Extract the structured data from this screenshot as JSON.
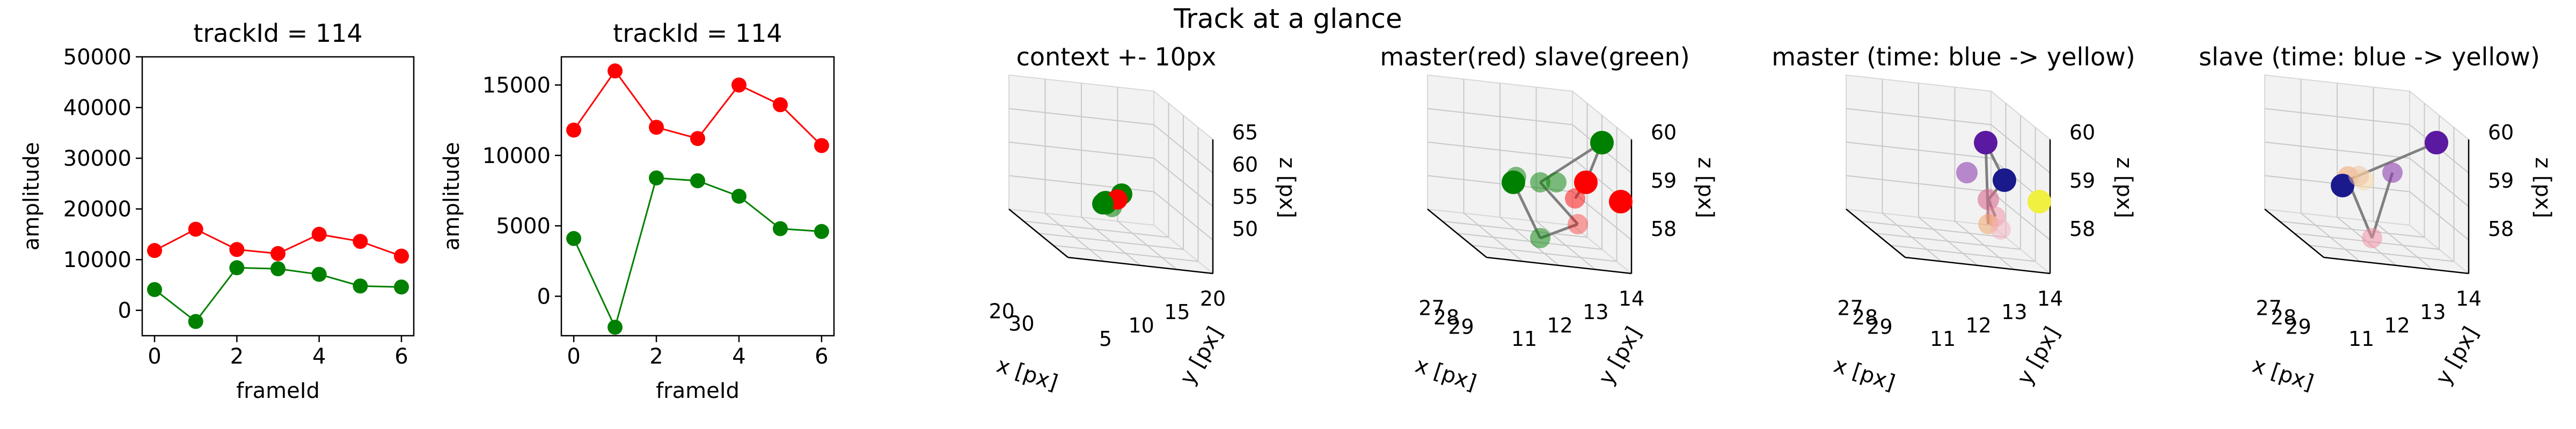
{
  "figure": {
    "suptitle": "Track at a glance"
  },
  "chart_data": [
    {
      "type": "line",
      "title": "trackId = 114",
      "xlabel": "frameId",
      "ylabel": "amplitude",
      "xlim": [
        -0.3,
        6.3
      ],
      "ylim": [
        -5000,
        50000
      ],
      "xticks": [
        0,
        2,
        4,
        6
      ],
      "yticks": [
        0,
        10000,
        20000,
        30000,
        40000,
        50000
      ],
      "x": [
        0,
        1,
        2,
        3,
        4,
        5,
        6
      ],
      "series": [
        {
          "color": "#ff0000",
          "values": [
            11800,
            16000,
            12000,
            11200,
            15000,
            13600,
            10700
          ]
        },
        {
          "color": "#008000",
          "values": [
            4100,
            -2200,
            8400,
            8200,
            7100,
            4800,
            4600
          ]
        }
      ]
    },
    {
      "type": "line",
      "title": "trackId = 114",
      "xlabel": "frameId",
      "ylabel": "amplitude",
      "xlim": [
        -0.3,
        6.3
      ],
      "ylim": [
        -2800,
        17000
      ],
      "xticks": [
        0,
        2,
        4,
        6
      ],
      "yticks": [
        0,
        5000,
        10000,
        15000
      ],
      "x": [
        0,
        1,
        2,
        3,
        4,
        5,
        6
      ],
      "series": [
        {
          "color": "#ff0000",
          "values": [
            11800,
            16000,
            12000,
            11200,
            15000,
            13600,
            10700
          ]
        },
        {
          "color": "#008000",
          "values": [
            4100,
            -2200,
            8400,
            8200,
            7100,
            4800,
            4600
          ]
        }
      ]
    },
    {
      "type": "scatter",
      "title": "context +- 10px",
      "xlabel": "x [px]",
      "ylabel": "y [px]",
      "zlabel": "z [px]",
      "xticks": [
        "20",
        "30"
      ],
      "yticks": [
        "5",
        "10",
        "15",
        "20"
      ],
      "zticks": [
        "50",
        "55",
        "60",
        "65"
      ],
      "points": [
        {
          "x": 27.3,
          "y": 12.1,
          "z": 58.6,
          "color": "#ff0000"
        },
        {
          "x": 27.1,
          "y": 12.3,
          "z": 58.9,
          "color": "#008000"
        },
        {
          "x": 26.6,
          "y": 12.0,
          "z": 58.2,
          "color": "#008000"
        },
        {
          "x": 27.6,
          "y": 12.4,
          "z": 59.1,
          "color": "#008000"
        },
        {
          "x": 27.2,
          "y": 11.8,
          "z": 58.4,
          "color": "#008000"
        }
      ]
    },
    {
      "type": "scatter",
      "title": "master(red) slave(green)",
      "xlabel": "x [px]",
      "ylabel": "y [px]",
      "zlabel": "z [px]",
      "xticks": [
        "27",
        "28",
        "29"
      ],
      "yticks": [
        "11",
        "12",
        "13",
        "14"
      ],
      "zticks": [
        "58",
        "59",
        "60"
      ]
    },
    {
      "type": "scatter",
      "title": "master (time: blue -> yellow)",
      "xlabel": "x [px]",
      "ylabel": "y [px]",
      "zlabel": "z [px]",
      "xticks": [
        "27",
        "28",
        "29"
      ],
      "yticks": [
        "11",
        "12",
        "13",
        "14"
      ],
      "zticks": [
        "58",
        "59",
        "60"
      ]
    },
    {
      "type": "scatter",
      "title": "slave (time: blue -> yellow)",
      "xlabel": "x [px]",
      "ylabel": "y [px]",
      "zlabel": "z [px]",
      "xticks": [
        "27",
        "28",
        "29"
      ],
      "yticks": [
        "11",
        "12",
        "13",
        "14"
      ],
      "zticks": [
        "58",
        "59",
        "60"
      ]
    }
  ]
}
